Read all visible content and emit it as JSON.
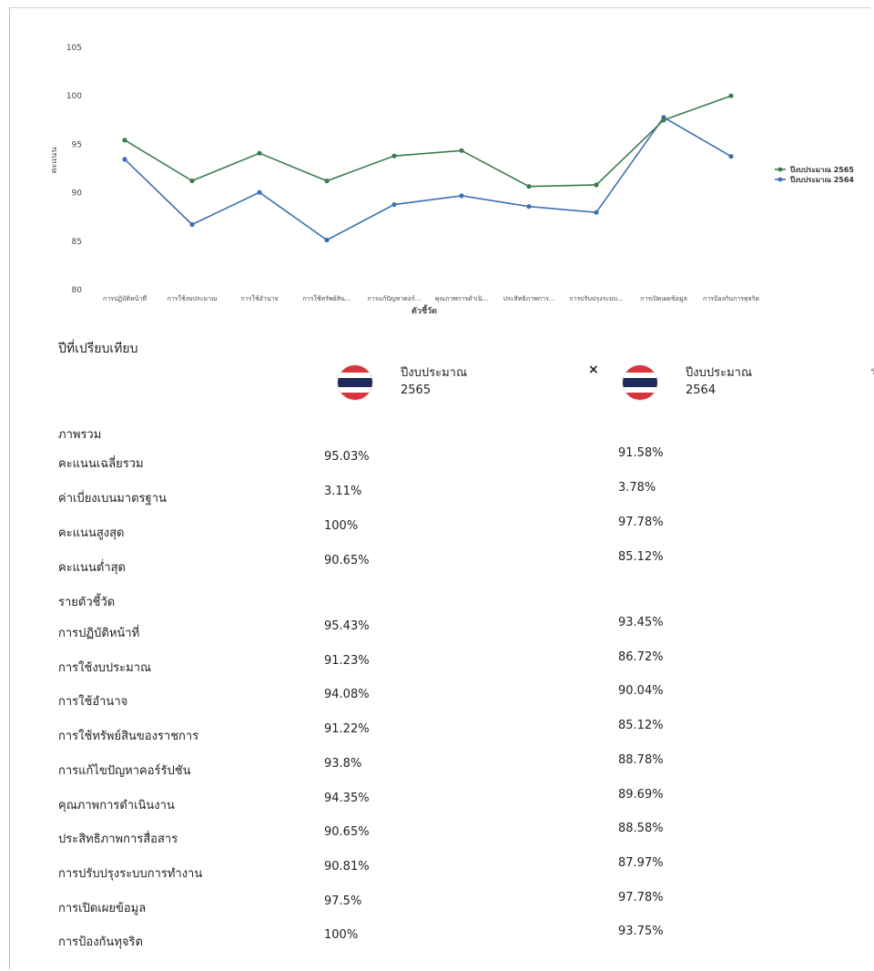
{
  "chart_data": {
    "type": "line",
    "xlabel": "ตัวชี้วัด",
    "ylabel": "คะแนน",
    "ylim": [
      80,
      105
    ],
    "yticks": [
      80,
      85,
      90,
      95,
      100,
      105
    ],
    "grid": false,
    "legend_position": "right",
    "categories": [
      "การปฏิบัติหน้าที่",
      "การใช้งบประมาณ",
      "การใช้อำนาจ",
      "การใช้ทรัพย์สิน...",
      "การแก้ปัญหาคอร์...",
      "คุณภาพการดำเนิ...",
      "ประสิทธิภาพการ...",
      "การปรับปรุงระบบ...",
      "การเปิดเผยข้อมูล",
      "การป้องกันการทุจริต"
    ],
    "series": [
      {
        "name": "ปีงบประมาณ 2565",
        "color": "#3b7a4f",
        "values": [
          95.43,
          91.23,
          94.08,
          91.22,
          93.8,
          94.35,
          90.65,
          90.81,
          97.5,
          100
        ]
      },
      {
        "name": "ปีงบประมาณ 2564",
        "color": "#3f6fb0",
        "values": [
          93.45,
          86.72,
          90.04,
          85.12,
          88.78,
          89.69,
          88.58,
          87.97,
          97.78,
          93.75
        ]
      }
    ]
  },
  "comparison": {
    "title": "ปีที่เปรียบเทียบ",
    "separator": "×",
    "edge_char": "ร",
    "columns": [
      {
        "label": "ปีงบประมาณ\n2565",
        "label_line1": "ปีงบประมาณ",
        "label_line2": "2565"
      },
      {
        "label": "ปีงบประมาณ\n2564",
        "label_line1": "ปีงบประมาณ",
        "label_line2": "2564"
      }
    ],
    "overall_title": "ภาพรวม",
    "overall": [
      {
        "label": "คะแนนเฉลี่ยรวม",
        "v2565": "95.03%",
        "v2564": "91.58%"
      },
      {
        "label": "ค่าเบี่ยงเบนมาตรฐาน",
        "v2565": "3.11%",
        "v2564": "3.78%"
      },
      {
        "label": "คะแนนสูงสุด",
        "v2565": "100%",
        "v2564": "97.78%"
      },
      {
        "label": "คะแนนต่ำสุด",
        "v2565": "90.65%",
        "v2564": "85.12%"
      }
    ],
    "indicators_title": "รายตัวชี้วัด",
    "indicators": [
      {
        "label": "การปฏิบัติหน้าที่",
        "v2565": "95.43%",
        "v2564": "93.45%"
      },
      {
        "label": "การใช้งบประมาณ",
        "v2565": "91.23%",
        "v2564": "86.72%"
      },
      {
        "label": "การใช้อำนาจ",
        "v2565": "94.08%",
        "v2564": "90.04%"
      },
      {
        "label": "การใช้ทรัพย์สินของราชการ",
        "v2565": "91.22%",
        "v2564": "85.12%"
      },
      {
        "label": "การแก้ไขปัญหาคอร์รัปชัน",
        "v2565": "93.8%",
        "v2564": "88.78%"
      },
      {
        "label": "คุณภาพการดำเนินงาน",
        "v2565": "94.35%",
        "v2564": "89.69%"
      },
      {
        "label": "ประสิทธิภาพการสื่อสาร",
        "v2565": "90.65%",
        "v2564": "88.58%"
      },
      {
        "label": "การปรับปรุงระบบการทำงาน",
        "v2565": "90.81%",
        "v2564": "87.97%"
      },
      {
        "label": "การเปิดเผยข้อมูล",
        "v2565": "97.5%",
        "v2564": "97.78%"
      },
      {
        "label": "การป้องกันทุจริต",
        "v2565": "100%",
        "v2564": "93.75%"
      }
    ]
  }
}
